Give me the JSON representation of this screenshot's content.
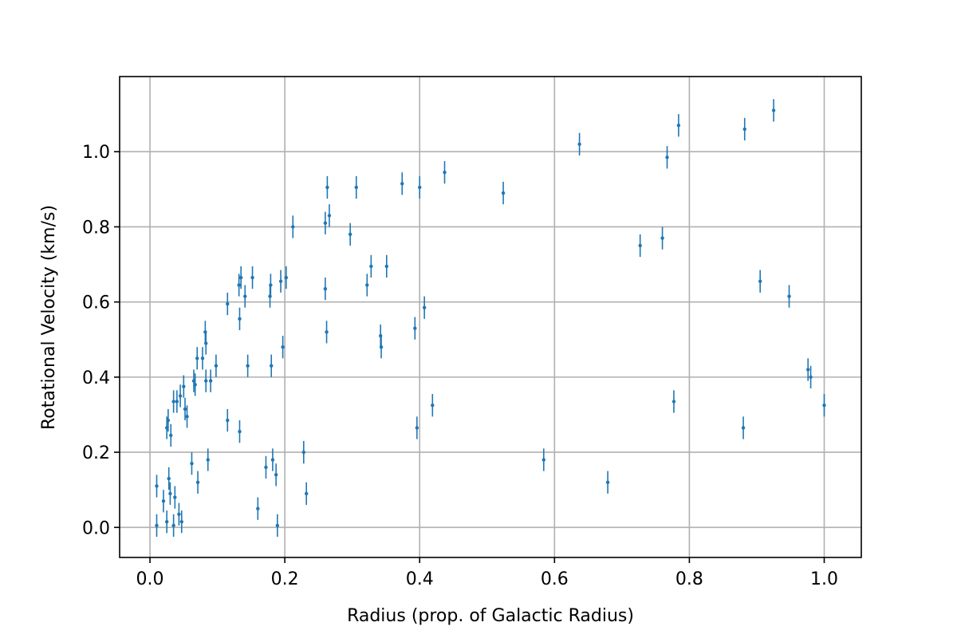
{
  "chart_data": {
    "type": "scatter",
    "title": "",
    "xlabel": "Radius (prop. of Galactic Radius)",
    "ylabel": "Rotational Velocity (km/s)",
    "xlim": [
      -0.045,
      1.055
    ],
    "ylim": [
      -0.08,
      1.2
    ],
    "xticks": [
      "0.0",
      "0.2",
      "0.4",
      "0.6",
      "0.8",
      "1.0"
    ],
    "yticks": [
      "0.0",
      "0.2",
      "0.4",
      "0.6",
      "0.8",
      "1.0"
    ],
    "grid": true,
    "legend": "none",
    "marker_color": "#1f77b4",
    "y_error": 0.03,
    "points": [
      {
        "x": 0.01,
        "y": 0.11
      },
      {
        "x": 0.01,
        "y": 0.005
      },
      {
        "x": 0.02,
        "y": 0.07
      },
      {
        "x": 0.025,
        "y": 0.015
      },
      {
        "x": 0.025,
        "y": 0.265
      },
      {
        "x": 0.027,
        "y": 0.285
      },
      {
        "x": 0.028,
        "y": 0.13
      },
      {
        "x": 0.03,
        "y": 0.09
      },
      {
        "x": 0.031,
        "y": 0.245
      },
      {
        "x": 0.035,
        "y": 0.335
      },
      {
        "x": 0.035,
        "y": 0.005
      },
      {
        "x": 0.037,
        "y": 0.08
      },
      {
        "x": 0.04,
        "y": 0.335
      },
      {
        "x": 0.043,
        "y": 0.035
      },
      {
        "x": 0.045,
        "y": 0.35
      },
      {
        "x": 0.047,
        "y": 0.015
      },
      {
        "x": 0.05,
        "y": 0.375
      },
      {
        "x": 0.052,
        "y": 0.315
      },
      {
        "x": 0.055,
        "y": 0.295
      },
      {
        "x": 0.062,
        "y": 0.17
      },
      {
        "x": 0.065,
        "y": 0.39
      },
      {
        "x": 0.067,
        "y": 0.38
      },
      {
        "x": 0.07,
        "y": 0.45
      },
      {
        "x": 0.071,
        "y": 0.12
      },
      {
        "x": 0.078,
        "y": 0.45
      },
      {
        "x": 0.082,
        "y": 0.52
      },
      {
        "x": 0.083,
        "y": 0.49
      },
      {
        "x": 0.083,
        "y": 0.39
      },
      {
        "x": 0.086,
        "y": 0.18
      },
      {
        "x": 0.09,
        "y": 0.39
      },
      {
        "x": 0.098,
        "y": 0.43
      },
      {
        "x": 0.115,
        "y": 0.595
      },
      {
        "x": 0.115,
        "y": 0.285
      },
      {
        "x": 0.132,
        "y": 0.645
      },
      {
        "x": 0.133,
        "y": 0.555
      },
      {
        "x": 0.133,
        "y": 0.255
      },
      {
        "x": 0.135,
        "y": 0.665
      },
      {
        "x": 0.141,
        "y": 0.615
      },
      {
        "x": 0.145,
        "y": 0.43
      },
      {
        "x": 0.152,
        "y": 0.665
      },
      {
        "x": 0.16,
        "y": 0.05
      },
      {
        "x": 0.172,
        "y": 0.16
      },
      {
        "x": 0.178,
        "y": 0.615
      },
      {
        "x": 0.179,
        "y": 0.645
      },
      {
        "x": 0.18,
        "y": 0.43
      },
      {
        "x": 0.182,
        "y": 0.18
      },
      {
        "x": 0.187,
        "y": 0.14
      },
      {
        "x": 0.189,
        "y": 0.005
      },
      {
        "x": 0.194,
        "y": 0.655
      },
      {
        "x": 0.197,
        "y": 0.48
      },
      {
        "x": 0.202,
        "y": 0.665
      },
      {
        "x": 0.212,
        "y": 0.8
      },
      {
        "x": 0.228,
        "y": 0.2
      },
      {
        "x": 0.232,
        "y": 0.09
      },
      {
        "x": 0.26,
        "y": 0.81
      },
      {
        "x": 0.26,
        "y": 0.635
      },
      {
        "x": 0.262,
        "y": 0.52
      },
      {
        "x": 0.263,
        "y": 0.905
      },
      {
        "x": 0.266,
        "y": 0.83
      },
      {
        "x": 0.297,
        "y": 0.78
      },
      {
        "x": 0.306,
        "y": 0.905
      },
      {
        "x": 0.322,
        "y": 0.645
      },
      {
        "x": 0.328,
        "y": 0.695
      },
      {
        "x": 0.342,
        "y": 0.51
      },
      {
        "x": 0.343,
        "y": 0.48
      },
      {
        "x": 0.351,
        "y": 0.695
      },
      {
        "x": 0.374,
        "y": 0.915
      },
      {
        "x": 0.393,
        "y": 0.53
      },
      {
        "x": 0.396,
        "y": 0.265
      },
      {
        "x": 0.4,
        "y": 0.905
      },
      {
        "x": 0.407,
        "y": 0.585
      },
      {
        "x": 0.419,
        "y": 0.325
      },
      {
        "x": 0.437,
        "y": 0.945
      },
      {
        "x": 0.524,
        "y": 0.89
      },
      {
        "x": 0.584,
        "y": 0.18
      },
      {
        "x": 0.637,
        "y": 1.02
      },
      {
        "x": 0.679,
        "y": 0.12
      },
      {
        "x": 0.727,
        "y": 0.75
      },
      {
        "x": 0.76,
        "y": 0.77
      },
      {
        "x": 0.767,
        "y": 0.985
      },
      {
        "x": 0.777,
        "y": 0.335
      },
      {
        "x": 0.784,
        "y": 1.07
      },
      {
        "x": 0.88,
        "y": 0.265
      },
      {
        "x": 0.882,
        "y": 1.06
      },
      {
        "x": 0.905,
        "y": 0.655
      },
      {
        "x": 0.925,
        "y": 1.11
      },
      {
        "x": 0.948,
        "y": 0.615
      },
      {
        "x": 0.976,
        "y": 0.42
      },
      {
        "x": 0.98,
        "y": 0.4
      },
      {
        "x": 1.0,
        "y": 0.325
      }
    ]
  }
}
